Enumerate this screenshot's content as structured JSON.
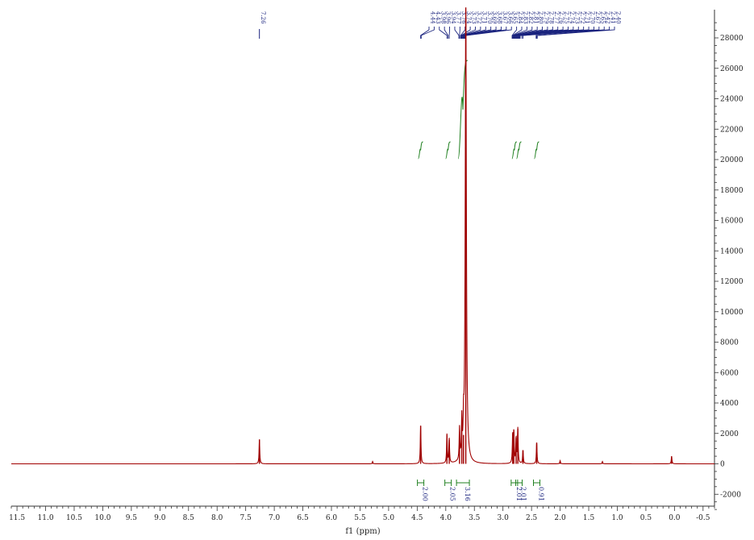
{
  "chart_data": {
    "type": "line",
    "title": "",
    "xlabel": "f1 (ppm)",
    "ylabel": "",
    "xlim": [
      11.6,
      -0.7
    ],
    "ylim": [
      -3000,
      30000
    ],
    "x_reversed": true,
    "grid": false,
    "x_ticks": [
      "11.5",
      "11.0",
      "10.5",
      "10.0",
      "9.5",
      "9.0",
      "8.5",
      "8.0",
      "7.5",
      "7.0",
      "6.5",
      "6.0",
      "5.5",
      "5.0",
      "4.5",
      "4.0",
      "3.5",
      "3.0",
      "2.5",
      "2.0",
      "1.5",
      "1.0",
      "0.5",
      "0.0",
      "-0.5"
    ],
    "y_ticks": [
      -2000,
      0,
      2000,
      4000,
      6000,
      8000,
      10000,
      12000,
      14000,
      16000,
      18000,
      20000,
      22000,
      24000,
      26000,
      28000
    ],
    "series": [
      {
        "points": [
          [
            7.26,
            1600
          ],
          [
            5.28,
            150
          ],
          [
            4.44,
            2500
          ],
          [
            3.98,
            1900
          ],
          [
            3.94,
            1600
          ],
          [
            3.76,
            2100
          ],
          [
            3.72,
            2500
          ],
          [
            3.69,
            1900
          ],
          [
            3.65,
            30000
          ],
          [
            2.83,
            1900
          ],
          [
            2.81,
            2100
          ],
          [
            2.77,
            1700
          ],
          [
            2.74,
            2300
          ],
          [
            2.65,
            900
          ],
          [
            2.41,
            1400
          ],
          [
            2.0,
            200
          ],
          [
            1.26,
            150
          ],
          [
            0.05,
            500
          ]
        ],
        "color": "#a00000"
      }
    ],
    "peak_labels": [
      "7.26",
      "4.44",
      "4.43",
      "3.98",
      "3.96",
      "3.94",
      "3.77",
      "3.76",
      "3.74",
      "3.73",
      "3.72",
      "3.71",
      "3.70",
      "3.69",
      "3.68",
      "3.67",
      "3.66",
      "3.65",
      "2.84",
      "2.83",
      "2.82",
      "2.81",
      "2.80",
      "2.79",
      "2.78",
      "2.77",
      "2.76",
      "2.75",
      "2.74",
      "2.73",
      "2.72",
      "2.71",
      "2.70",
      "2.67",
      "2.65",
      "2.42",
      "2.41",
      "2.40"
    ],
    "integrals": [
      {
        "center": 4.44,
        "value": "2.00"
      },
      {
        "center": 3.96,
        "value": "2.05"
      },
      {
        "center": 3.7,
        "value": "3.16"
      },
      {
        "center": 2.8,
        "value": "2.01"
      },
      {
        "center": 2.72,
        "value": "2.01"
      },
      {
        "center": 2.41,
        "value": "0.91"
      }
    ],
    "colors": {
      "spectrum": "#a00000",
      "integral": "#208020",
      "label": "#1a237e",
      "axis": "#333333"
    }
  }
}
